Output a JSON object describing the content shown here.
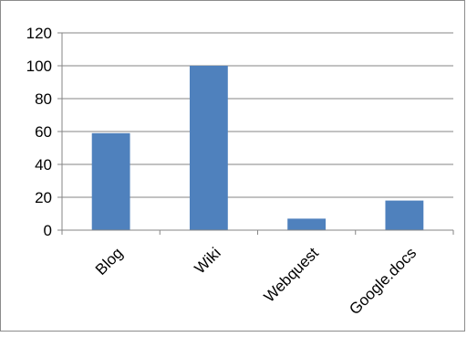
{
  "chart_data": {
    "type": "bar",
    "title": "",
    "xlabel": "",
    "ylabel": "",
    "categories": [
      "Blog",
      "Wiki",
      "Webquest",
      "Google.docs"
    ],
    "values": [
      59,
      100,
      7,
      18
    ],
    "ylim": [
      0,
      120
    ],
    "yticks": [
      0,
      20,
      40,
      60,
      80,
      100,
      120
    ],
    "grid": true,
    "legend": "none",
    "colors": {
      "bar": "#4f81bd",
      "grid": "#868686",
      "axis": "#868686",
      "text": "#000000"
    }
  }
}
